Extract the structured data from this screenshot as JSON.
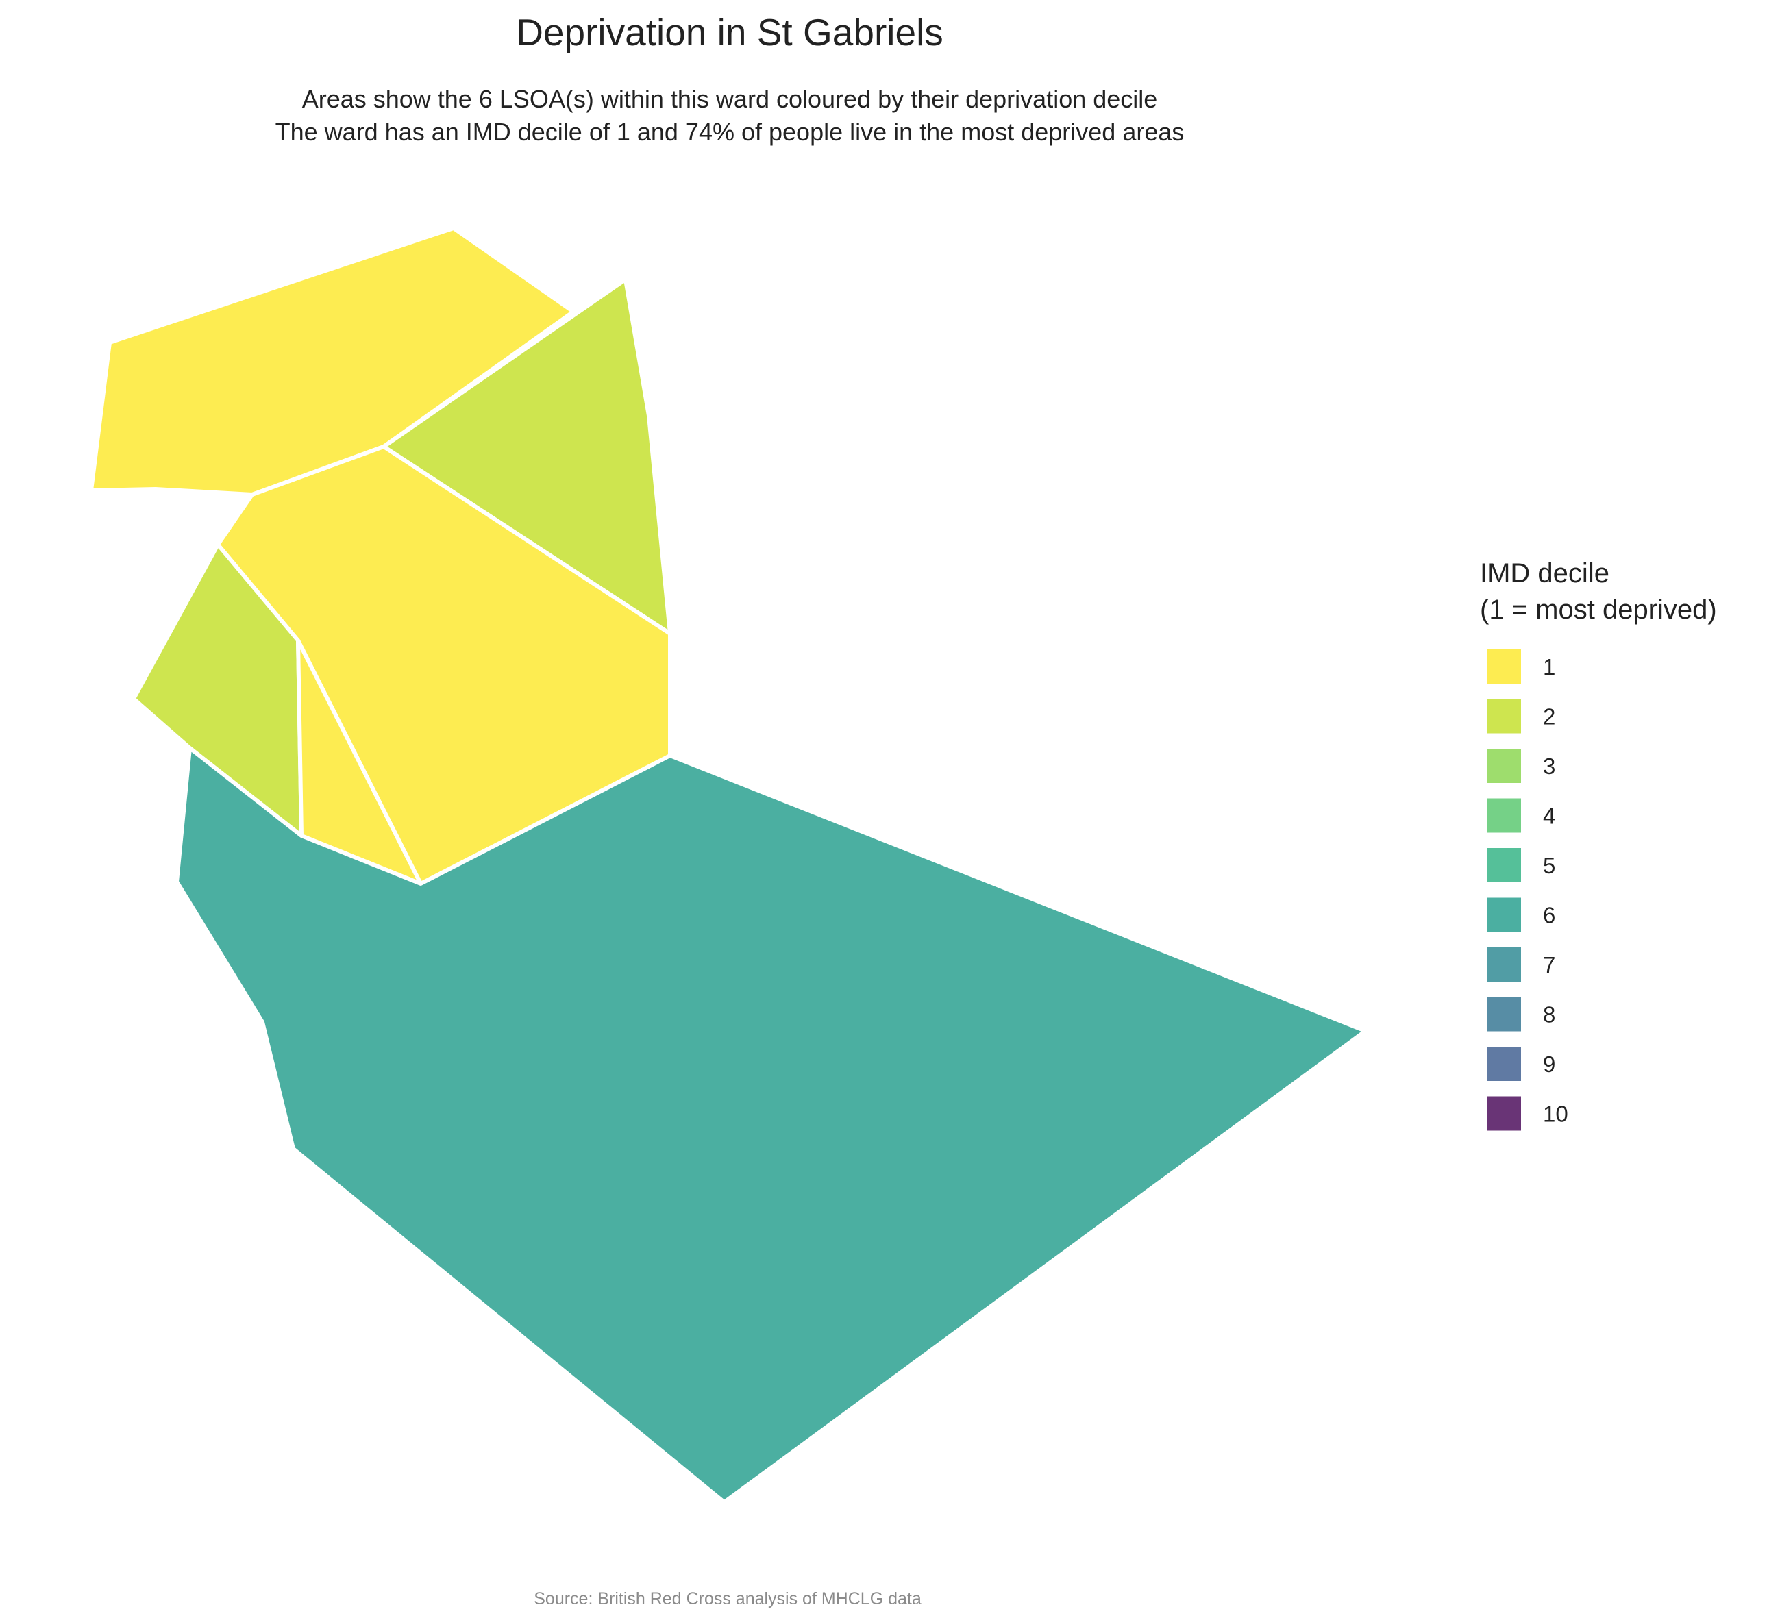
{
  "title": "Deprivation in St Gabriels",
  "subtitle_line1": "Areas show the 6 LSOA(s) within this ward coloured by their deprivation decile",
  "subtitle_line2": "The ward has an IMD decile of 1 and 74% of people live in the most deprived areas",
  "legend": {
    "title_line1": "IMD decile",
    "title_line2": "(1 = most deprived)",
    "items": [
      {
        "label": "1",
        "color": "#FDE725"
      },
      {
        "label": "2",
        "color": "#C2DF23"
      },
      {
        "label": "3",
        "color": "#86D549"
      },
      {
        "label": "4",
        "color": "#52C569"
      },
      {
        "label": "5",
        "color": "#2AB07F"
      },
      {
        "label": "6",
        "color": "#1E9B8A"
      },
      {
        "label": "7",
        "color": "#25858E"
      },
      {
        "label": "8",
        "color": "#2D708E"
      },
      {
        "label": "9",
        "color": "#38598C"
      },
      {
        "label": "10",
        "color": "#440154"
      }
    ]
  },
  "areas": [
    {
      "decile": 1
    },
    {
      "decile": 2
    },
    {
      "decile": 1
    },
    {
      "decile": 2
    },
    {
      "decile": 1
    },
    {
      "decile": 6
    }
  ],
  "caption": "Source: British Red Cross analysis of MHCLG data"
}
